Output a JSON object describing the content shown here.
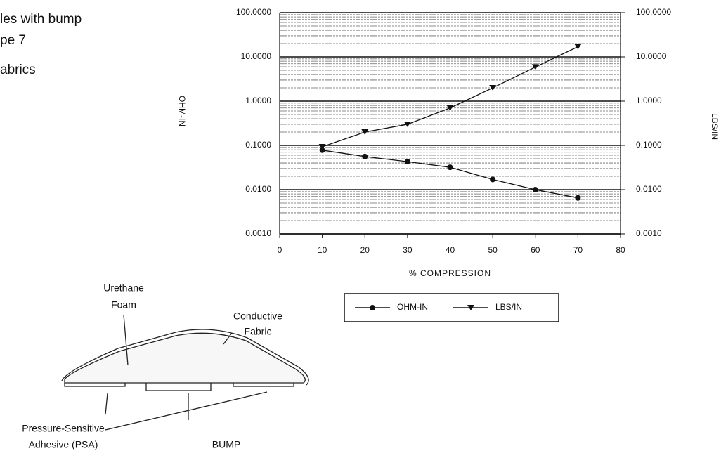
{
  "side_text": [
    "les with bump",
    "pe 7",
    "abrics"
  ],
  "chart_data": {
    "type": "line",
    "x": [
      10,
      20,
      30,
      40,
      50,
      60,
      70
    ],
    "series": [
      {
        "name": "OHM-IN",
        "color": "#111111",
        "marker": "circle",
        "values": [
          0.078,
          0.056,
          0.043,
          0.032,
          0.017,
          0.01,
          0.0065
        ]
      },
      {
        "name": "LBS/IN",
        "color": "#111111",
        "marker": "triangle-down",
        "axis": "y2",
        "values": [
          0.093,
          0.2,
          0.3,
          0.7,
          2.0,
          5.9,
          17
        ]
      }
    ],
    "x_label": "% COMPRESSION",
    "y_label": "OHM-IN",
    "y2_label": "LBS/IN",
    "xlim": [
      0,
      80
    ],
    "xticks": [
      0,
      10,
      20,
      30,
      40,
      50,
      60,
      70,
      80
    ],
    "ylim": [
      0.001,
      100
    ],
    "log_y": true,
    "grid": true,
    "minor_grid": true,
    "yticks": [
      {
        "value": 100,
        "label": "100.0000"
      },
      {
        "value": 10,
        "label": "10.0000"
      },
      {
        "value": 1,
        "label": "1.0000"
      },
      {
        "value": 0.1,
        "label": "0.1000"
      },
      {
        "value": 0.01,
        "label": "0.0100"
      },
      {
        "value": 0.001,
        "label": "0.0010"
      }
    ],
    "y2lim": [
      0.001,
      100
    ],
    "y2ticks": [
      {
        "value": 100,
        "label": "100.0000"
      },
      {
        "value": 10,
        "label": "10.0000"
      },
      {
        "value": 1,
        "label": "1.0000"
      },
      {
        "value": 0.1,
        "label": "0.1000"
      },
      {
        "value": 0.01,
        "label": "0.0100"
      },
      {
        "value": 0.001,
        "label": "0.0010"
      }
    ],
    "legend": "bottom"
  },
  "diagram": {
    "foam_label_1": "Urethane",
    "foam_label_2": "Foam",
    "fabric_label_1": "Conductive",
    "fabric_label_2": "Fabric",
    "psa_label_1": "Pressure-Sensitive",
    "psa_label_2": "Adhesive (PSA)",
    "caption": "BUMP"
  }
}
